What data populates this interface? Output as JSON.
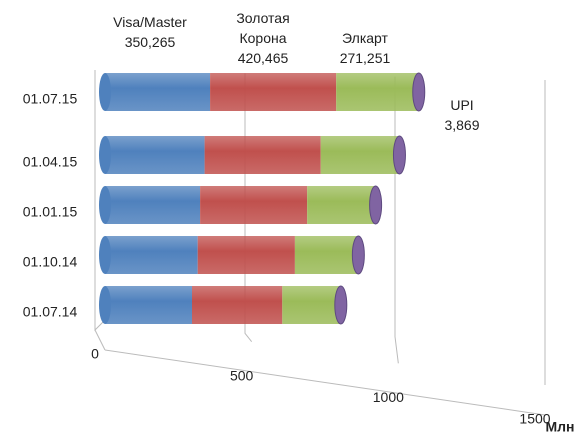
{
  "chart_data": {
    "type": "bar3d",
    "orientation": "horizontal",
    "stacked": true,
    "categories": [
      "01.07.15",
      "01.04.15",
      "01.01.15",
      "01.10.14",
      "01.07.14"
    ],
    "series": [
      {
        "name": "Visa/Master",
        "color": "#4f81bd",
        "values": [
          350.265,
          332,
          317,
          309,
          290
        ],
        "value_labels": [
          "350,265",
          null,
          null,
          null,
          null
        ]
      },
      {
        "name": "Золотая Корона",
        "color": "#c0504d",
        "values": [
          420.465,
          387,
          357,
          324,
          301
        ],
        "value_labels": [
          "420,465",
          null,
          null,
          null,
          null
        ]
      },
      {
        "name": "Элкарт",
        "color": "#9bbb59",
        "values": [
          271.251,
          259,
          225,
          209,
          193
        ],
        "value_labels": [
          "271,251",
          null,
          null,
          null,
          null
        ]
      },
      {
        "name": "UPI",
        "color": "#8064a2",
        "values": [
          3.869,
          3.5,
          3,
          2.5,
          2
        ],
        "value_labels": [
          "3,869",
          null,
          null,
          null,
          null
        ]
      }
    ],
    "xlim": [
      0,
      1500
    ],
    "xticks": [
      0,
      500,
      1000,
      1500
    ],
    "x_label": "Млн",
    "grid": true
  }
}
